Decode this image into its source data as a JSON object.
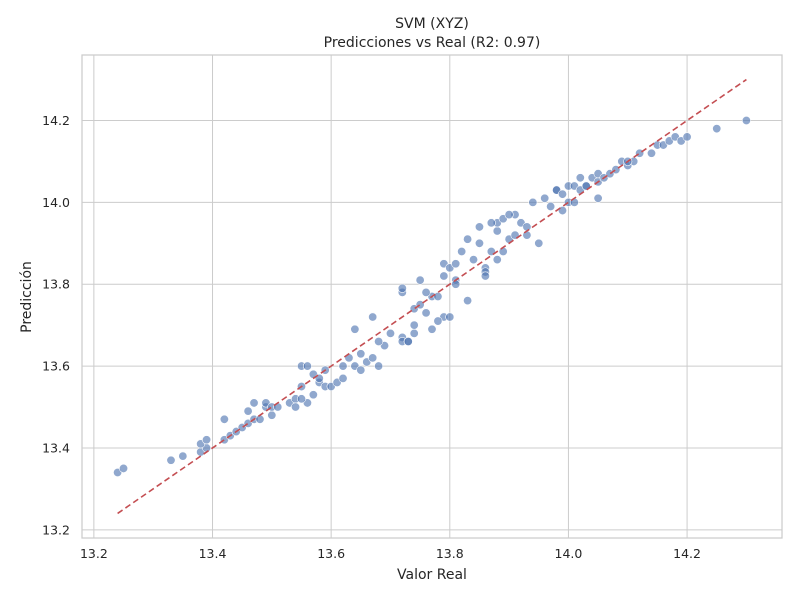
{
  "chart_data": {
    "type": "scatter",
    "title": "SVM (XYZ)",
    "subtitle": "Predicciones vs Real (R2: 0.97)",
    "xlabel": "Valor Real",
    "ylabel": "Predicción",
    "xlim": [
      13.18,
      14.36
    ],
    "ylim": [
      13.18,
      14.36
    ],
    "xticks": [
      13.2,
      13.4,
      13.6,
      13.8,
      14.0,
      14.2
    ],
    "xtick_labels": [
      "13.2",
      "13.4",
      "13.6",
      "13.8",
      "14.0",
      "14.2"
    ],
    "yticks": [
      13.2,
      13.4,
      13.6,
      13.8,
      14.0,
      14.2
    ],
    "ytick_labels": [
      "13.2",
      "13.4",
      "13.6",
      "13.8",
      "14.0",
      "14.2"
    ],
    "grid": true,
    "point_color": "#4c72b0",
    "reference_line": {
      "x": [
        13.24,
        14.3
      ],
      "y": [
        13.24,
        14.3
      ],
      "color": "#c44e52",
      "style": "dashed"
    },
    "x": [
      13.24,
      13.25,
      13.33,
      13.35,
      13.38,
      13.39,
      13.38,
      13.39,
      13.42,
      13.43,
      13.42,
      13.44,
      13.45,
      13.46,
      13.46,
      13.47,
      13.47,
      13.48,
      13.49,
      13.49,
      13.5,
      13.5,
      13.51,
      13.53,
      13.54,
      13.54,
      13.55,
      13.55,
      13.56,
      13.56,
      13.57,
      13.58,
      13.57,
      13.58,
      13.59,
      13.6,
      13.61,
      13.62,
      13.62,
      13.63,
      13.64,
      13.65,
      13.66,
      13.67,
      13.68,
      13.69,
      13.7,
      13.72,
      13.72,
      13.73,
      13.74,
      13.74,
      13.75,
      13.76,
      13.77,
      13.78,
      13.79,
      13.79,
      13.8,
      13.8,
      13.81,
      13.81,
      13.82,
      13.83,
      13.84,
      13.85,
      13.85,
      13.86,
      13.86,
      13.87,
      13.88,
      13.88,
      13.89,
      13.89,
      13.9,
      13.91,
      13.91,
      13.92,
      13.93,
      13.94,
      13.95,
      13.96,
      13.97,
      13.98,
      13.99,
      14.0,
      14.0,
      14.01,
      14.02,
      14.02,
      14.03,
      14.04,
      14.05,
      14.05,
      14.06,
      14.07,
      14.08,
      14.09,
      14.1,
      14.11,
      14.12,
      14.14,
      14.15,
      14.16,
      14.17,
      14.18,
      14.19,
      14.2,
      14.25,
      14.3,
      13.64,
      13.67,
      13.72,
      13.72,
      13.73,
      13.74,
      13.75,
      13.76,
      13.78,
      13.79,
      13.83,
      13.77,
      13.87,
      13.88,
      13.9,
      13.93,
      13.65,
      13.68,
      13.55,
      13.59,
      13.98,
      14.01,
      14.05,
      14.1,
      13.86,
      13.81,
      13.99,
      14.03
    ],
    "y": [
      13.34,
      13.35,
      13.37,
      13.38,
      13.39,
      13.4,
      13.41,
      13.42,
      13.42,
      13.43,
      13.47,
      13.44,
      13.45,
      13.49,
      13.46,
      13.51,
      13.47,
      13.47,
      13.5,
      13.51,
      13.48,
      13.5,
      13.5,
      13.51,
      13.52,
      13.5,
      13.6,
      13.55,
      13.51,
      13.6,
      13.53,
      13.56,
      13.58,
      13.57,
      13.55,
      13.55,
      13.56,
      13.57,
      13.6,
      13.62,
      13.6,
      13.59,
      13.61,
      13.62,
      13.6,
      13.65,
      13.68,
      13.67,
      13.66,
      13.66,
      13.68,
      13.74,
      13.75,
      13.73,
      13.77,
      13.77,
      13.85,
      13.72,
      13.72,
      13.84,
      13.85,
      13.81,
      13.88,
      13.91,
      13.86,
      13.9,
      13.94,
      13.84,
      13.83,
      13.88,
      13.93,
      13.95,
      13.88,
      13.96,
      13.91,
      13.97,
      13.92,
      13.95,
      13.94,
      14.0,
      13.9,
      14.01,
      13.99,
      14.03,
      13.98,
      14.04,
      14.0,
      14.04,
      14.03,
      14.06,
      14.04,
      14.06,
      14.05,
      14.07,
      14.06,
      14.07,
      14.08,
      14.1,
      14.09,
      14.1,
      14.12,
      14.12,
      14.14,
      14.14,
      14.15,
      14.16,
      14.15,
      14.16,
      14.18,
      14.2,
      13.69,
      13.72,
      13.78,
      13.79,
      13.66,
      13.7,
      13.81,
      13.78,
      13.71,
      13.82,
      13.76,
      13.69,
      13.95,
      13.86,
      13.97,
      13.92,
      13.63,
      13.66,
      13.52,
      13.59,
      14.03,
      14.0,
      14.01,
      14.1,
      13.82,
      13.8,
      14.02,
      14.04
    ]
  }
}
